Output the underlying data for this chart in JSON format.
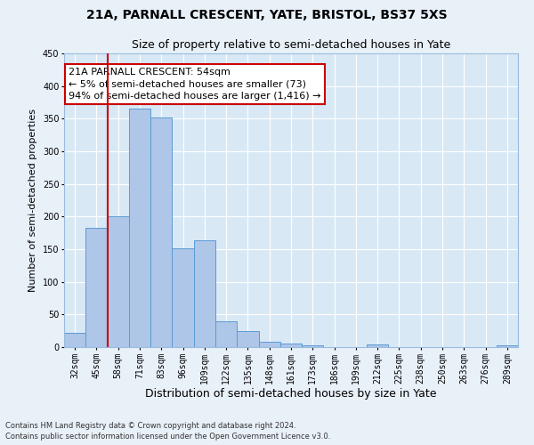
{
  "title1": "21A, PARNALL CRESCENT, YATE, BRISTOL, BS37 5XS",
  "title2": "Size of property relative to semi-detached houses in Yate",
  "xlabel": "Distribution of semi-detached houses by size in Yate",
  "ylabel": "Number of semi-detached properties",
  "categories": [
    "32sqm",
    "45sqm",
    "58sqm",
    "71sqm",
    "83sqm",
    "96sqm",
    "109sqm",
    "122sqm",
    "135sqm",
    "148sqm",
    "161sqm",
    "173sqm",
    "186sqm",
    "199sqm",
    "212sqm",
    "225sqm",
    "238sqm",
    "250sqm",
    "263sqm",
    "276sqm",
    "289sqm"
  ],
  "values": [
    22,
    183,
    201,
    365,
    352,
    151,
    164,
    40,
    25,
    8,
    5,
    3,
    0,
    0,
    4,
    0,
    0,
    0,
    0,
    0,
    3
  ],
  "bar_color": "#aec6e8",
  "bar_edge_color": "#5b9bd5",
  "property_line_color": "#cc0000",
  "annotation_title": "21A PARNALL CRESCENT: 54sqm",
  "annotation_line1": "← 5% of semi-detached houses are smaller (73)",
  "annotation_line2": "94% of semi-detached houses are larger (1,416) →",
  "annotation_box_color": "#ffffff",
  "annotation_box_edge": "#cc0000",
  "ylim": [
    0,
    450
  ],
  "yticks": [
    0,
    50,
    100,
    150,
    200,
    250,
    300,
    350,
    400,
    450
  ],
  "footnote1": "Contains HM Land Registry data © Crown copyright and database right 2024.",
  "footnote2": "Contains public sector information licensed under the Open Government Licence v3.0.",
  "background_color": "#e8f0f8",
  "plot_bg_color": "#d8e8f5",
  "grid_color": "#ffffff",
  "title1_fontsize": 10,
  "title2_fontsize": 9,
  "xlabel_fontsize": 9,
  "ylabel_fontsize": 8,
  "tick_fontsize": 7,
  "annot_fontsize": 8,
  "footnote_fontsize": 6
}
